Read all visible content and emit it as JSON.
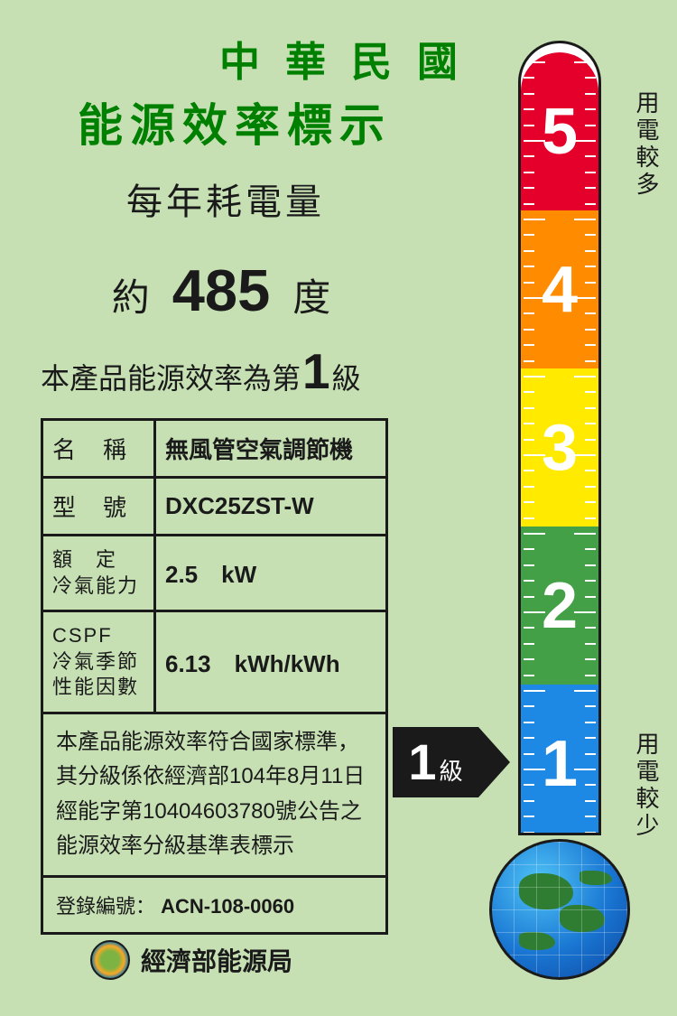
{
  "header": {
    "title": "中華民國",
    "subtitle": "能源效率標示",
    "title_color": "#008000",
    "background_color": "#c6e0b4"
  },
  "annual": {
    "label": "每年耗電量",
    "approx": "約",
    "value": "485",
    "unit": "度"
  },
  "grade_statement": {
    "prefix": "本產品能源效率為第",
    "grade": "1",
    "suffix": "級"
  },
  "spec_table": {
    "rows": [
      {
        "label": "名　稱",
        "value": "無風管空氣調節機"
      },
      {
        "label": "型　號",
        "value": "DXC25ZST-W"
      },
      {
        "label": "額　定\n冷氣能力",
        "value": "2.5　kW"
      },
      {
        "label": "CSPF\n冷氣季節\n性能因數",
        "value": "6.13　kWh/kWh"
      }
    ]
  },
  "compliance_text": "本產品能源效率符合國家標準，其分級係依經濟部104年8月11日經能字第10404603780號公告之能源效率分級基準表標示",
  "registration": {
    "label": "登錄編號：",
    "value": "ACN-108-0060"
  },
  "footer": {
    "agency": "經濟部能源局"
  },
  "thermometer": {
    "segments": [
      {
        "level": 5,
        "color": "#e4002b"
      },
      {
        "level": 4,
        "color": "#ff8c00"
      },
      {
        "level": 3,
        "color": "#ffea00"
      },
      {
        "level": 2,
        "color": "#43a047"
      },
      {
        "level": 1,
        "color": "#1e88e5"
      }
    ],
    "label_more": "用電較多",
    "label_less": "用電較少",
    "arrow_grade": "1",
    "arrow_suffix": "級",
    "tube_border_color": "#1a1a1a",
    "num_color": "#ffffff",
    "num_fontsize": 72
  }
}
